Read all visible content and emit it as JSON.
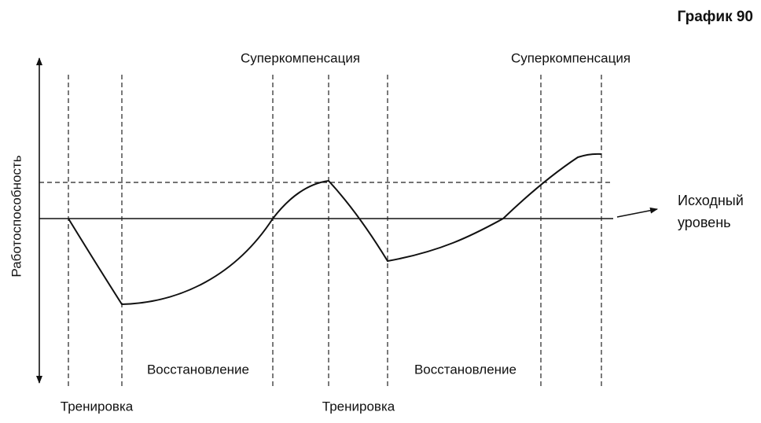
{
  "title": "График 90",
  "y_axis_label": "Работоспособность",
  "baseline_label": {
    "line1": "Исходный",
    "line2": "уровень"
  },
  "cycles": [
    {
      "supercompensation": "Суперкомпенсация",
      "recovery": "Восстановление",
      "training": "Тренировка"
    },
    {
      "supercompensation": "Суперкомпенсация",
      "recovery": "Восстановление",
      "training": "Тренировка"
    }
  ]
}
